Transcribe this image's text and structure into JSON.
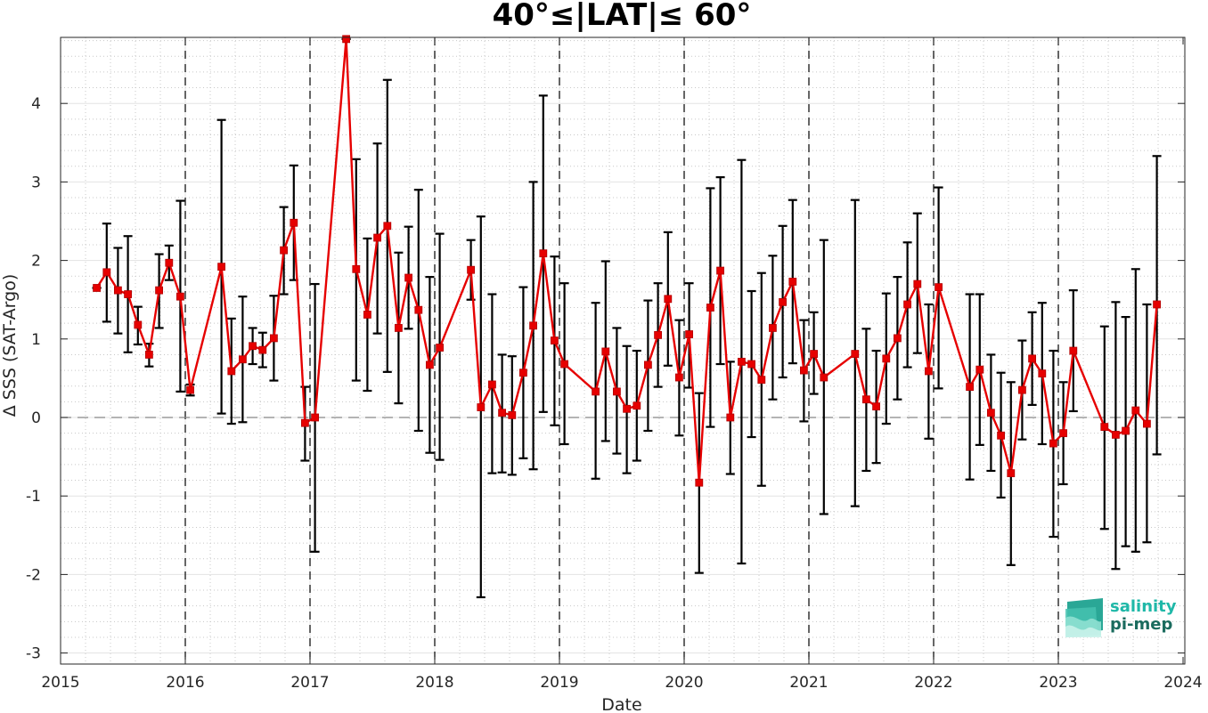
{
  "chart_data": {
    "type": "line",
    "title": "40°≤|LAT|≤ 60°",
    "xlabel": "Date",
    "ylabel": "Δ SSS (SAT-Argo)",
    "xlim": [
      2015,
      2024
    ],
    "ylim": [
      -3.1,
      4.85
    ],
    "x_ticks": [
      "2015",
      "2016",
      "2017",
      "2018",
      "2019",
      "2020",
      "2021",
      "2022",
      "2023",
      "2024"
    ],
    "y_ticks": [
      "-3",
      "-2",
      "-1",
      "0",
      "1",
      "2",
      "3",
      "4"
    ],
    "grid": true,
    "reference_line_y": 0,
    "year_divider_lines": [
      2016,
      2017,
      2018,
      2019,
      2020,
      2021,
      2022,
      2023
    ],
    "series": [
      {
        "line_color": "#e60000",
        "errorbar_color": "#000000",
        "x": [
          2015.29,
          2015.37,
          2015.46,
          2015.54,
          2015.62,
          2015.71,
          2015.79,
          2015.87,
          2015.96,
          2016.04,
          2016.29,
          2016.37,
          2016.46,
          2016.54,
          2016.62,
          2016.71,
          2016.79,
          2016.87,
          2016.96,
          2017.04,
          2017.29,
          2017.37,
          2017.46,
          2017.54,
          2017.62,
          2017.71,
          2017.79,
          2017.87,
          2017.96,
          2018.04,
          2018.29,
          2018.37,
          2018.46,
          2018.54,
          2018.62,
          2018.71,
          2018.79,
          2018.87,
          2018.96,
          2019.04,
          2019.29,
          2019.37,
          2019.46,
          2019.54,
          2019.62,
          2019.71,
          2019.79,
          2019.87,
          2019.96,
          2020.04,
          2020.12,
          2020.21,
          2020.29,
          2020.37,
          2020.46,
          2020.54,
          2020.62,
          2020.71,
          2020.79,
          2020.87,
          2020.96,
          2021.04,
          2021.12,
          2021.37,
          2021.46,
          2021.54,
          2021.62,
          2021.71,
          2021.79,
          2021.87,
          2021.96,
          2022.04,
          2022.29,
          2022.37,
          2022.46,
          2022.54,
          2022.62,
          2022.71,
          2022.79,
          2022.87,
          2022.96,
          2023.04,
          2023.12,
          2023.37,
          2023.46,
          2023.54,
          2023.62,
          2023.71,
          2023.79
        ],
        "y": [
          1.65,
          1.85,
          1.62,
          1.57,
          1.18,
          0.8,
          1.62,
          1.97,
          1.54,
          0.35,
          1.92,
          0.59,
          0.74,
          0.91,
          0.86,
          1.01,
          2.13,
          2.48,
          -0.07,
          0.0,
          4.82,
          1.89,
          1.31,
          2.29,
          2.44,
          1.14,
          1.78,
          1.37,
          0.67,
          0.89,
          1.88,
          0.13,
          0.42,
          0.06,
          0.03,
          0.57,
          1.17,
          2.09,
          0.98,
          0.68,
          0.33,
          0.84,
          0.33,
          0.11,
          0.15,
          0.67,
          1.05,
          1.51,
          0.51,
          1.06,
          -0.83,
          1.4,
          1.87,
          0.0,
          0.71,
          0.68,
          0.48,
          1.14,
          1.47,
          1.73,
          0.6,
          0.81,
          0.51,
          0.81,
          0.23,
          0.14,
          0.75,
          1.01,
          1.44,
          1.7,
          0.59,
          1.66,
          0.39,
          0.61,
          0.06,
          -0.23,
          -0.71,
          0.35,
          0.75,
          0.56,
          -0.33,
          -0.2,
          0.85,
          -0.12,
          -0.22,
          -0.17,
          0.09,
          -0.08,
          1.44
        ],
        "err_low": [
          1.65,
          1.22,
          1.07,
          0.83,
          0.93,
          0.65,
          1.14,
          1.75,
          0.33,
          0.28,
          0.05,
          -0.08,
          -0.06,
          0.68,
          0.64,
          0.47,
          1.57,
          1.75,
          -0.55,
          -1.71,
          4.82,
          0.47,
          0.34,
          1.07,
          0.58,
          0.18,
          1.13,
          -0.17,
          -0.45,
          -0.54,
          1.5,
          -2.29,
          -0.71,
          -0.7,
          -0.73,
          -0.52,
          -0.66,
          0.07,
          -0.1,
          -0.34,
          -0.78,
          -0.3,
          -0.46,
          -0.71,
          -0.55,
          -0.17,
          0.39,
          0.66,
          -0.23,
          0.38,
          -1.98,
          -0.12,
          0.68,
          -0.72,
          -1.86,
          -0.25,
          -0.87,
          0.23,
          0.51,
          0.69,
          -0.05,
          0.3,
          -1.23,
          -1.13,
          -0.68,
          -0.58,
          -0.08,
          0.23,
          0.64,
          0.82,
          -0.27,
          0.37,
          -0.79,
          -0.35,
          -0.68,
          -1.02,
          -1.88,
          -0.28,
          0.16,
          -0.34,
          -1.52,
          -0.85,
          0.08,
          -1.42,
          -1.93,
          -1.64,
          -1.71,
          -1.59,
          -0.47
        ],
        "err_high": [
          1.65,
          2.47,
          2.16,
          2.31,
          1.41,
          0.94,
          2.08,
          2.19,
          2.76,
          0.42,
          3.79,
          1.26,
          1.54,
          1.14,
          1.08,
          1.55,
          2.68,
          3.21,
          0.39,
          1.7,
          4.82,
          3.29,
          2.28,
          3.49,
          4.3,
          2.1,
          2.43,
          2.9,
          1.79,
          2.34,
          2.26,
          2.56,
          1.57,
          0.8,
          0.78,
          1.66,
          3.0,
          4.1,
          2.05,
          1.71,
          1.46,
          1.99,
          1.14,
          0.91,
          0.85,
          1.49,
          1.71,
          2.36,
          1.24,
          1.71,
          0.31,
          2.92,
          3.06,
          0.71,
          3.28,
          1.61,
          1.84,
          2.06,
          2.44,
          2.77,
          1.24,
          1.34,
          2.26,
          2.77,
          1.13,
          0.85,
          1.58,
          1.79,
          2.23,
          2.6,
          1.44,
          2.93,
          1.57,
          1.57,
          0.8,
          0.57,
          0.45,
          0.98,
          1.34,
          1.46,
          0.85,
          0.45,
          1.62,
          1.16,
          1.47,
          1.28,
          1.89,
          1.44,
          3.33
        ]
      }
    ]
  },
  "logo": {
    "line1": "salinity",
    "line2": "pi-mep",
    "color1": "#1fb8a8",
    "color2": "#1a6b5e"
  }
}
